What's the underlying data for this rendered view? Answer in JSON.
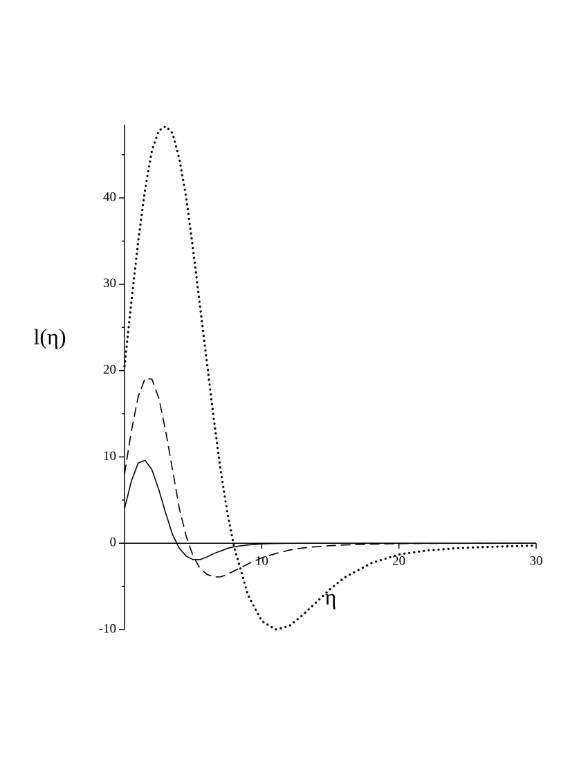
{
  "chart_data": {
    "type": "line",
    "xlabel": "η",
    "ylabel": "l(η)",
    "x": [
      0,
      0.5,
      1,
      1.5,
      2,
      2.5,
      3,
      3.5,
      4,
      4.5,
      5,
      5.5,
      6,
      6.5,
      7,
      7.5,
      8,
      9,
      10,
      11,
      12,
      13,
      14,
      15,
      16,
      18,
      20,
      22,
      24,
      26,
      28,
      30
    ],
    "series": [
      {
        "color": "#000000",
        "dash": "solid",
        "values": [
          4,
          7.2,
          9.3,
          9.6,
          8.5,
          6.2,
          3.5,
          1.0,
          -0.6,
          -1.5,
          -1.9,
          -1.9,
          -1.6,
          -1.2,
          -0.9,
          -0.6,
          -0.4,
          -0.2,
          -0.08,
          -0.03,
          -0.01,
          0,
          0,
          0,
          0,
          0,
          0,
          0,
          0,
          0,
          0,
          0
        ]
      },
      {
        "color": "#000000",
        "dash": "dashed",
        "values": [
          8,
          13,
          17,
          19.1,
          19,
          16.8,
          13,
          8.5,
          4,
          0.8,
          -1.5,
          -2.9,
          -3.6,
          -3.9,
          -3.9,
          -3.6,
          -3.2,
          -2.4,
          -1.7,
          -1.2,
          -0.8,
          -0.55,
          -0.4,
          -0.28,
          -0.2,
          -0.1,
          -0.05,
          -0.02,
          -0.01,
          0,
          0,
          0
        ]
      },
      {
        "color": "#000000",
        "dash": "dotted",
        "values": [
          20.5,
          28,
          35,
          41,
          45.5,
          47.8,
          48.3,
          47.5,
          44.5,
          40,
          34,
          27.5,
          21,
          14.5,
          8.5,
          3.5,
          -0.5,
          -6,
          -9,
          -10,
          -9.6,
          -8.3,
          -6.8,
          -5.3,
          -4.0,
          -2.3,
          -1.3,
          -0.85,
          -0.6,
          -0.45,
          -0.35,
          -0.28
        ]
      }
    ],
    "xlim": [
      0,
      30
    ],
    "ylim": [
      -10,
      48.5
    ],
    "xticks": [
      10,
      20,
      30
    ],
    "yticks": [
      -10,
      0,
      10,
      20,
      30,
      40
    ],
    "yminorticks": [
      -5,
      5,
      15,
      25,
      35,
      45
    ]
  }
}
